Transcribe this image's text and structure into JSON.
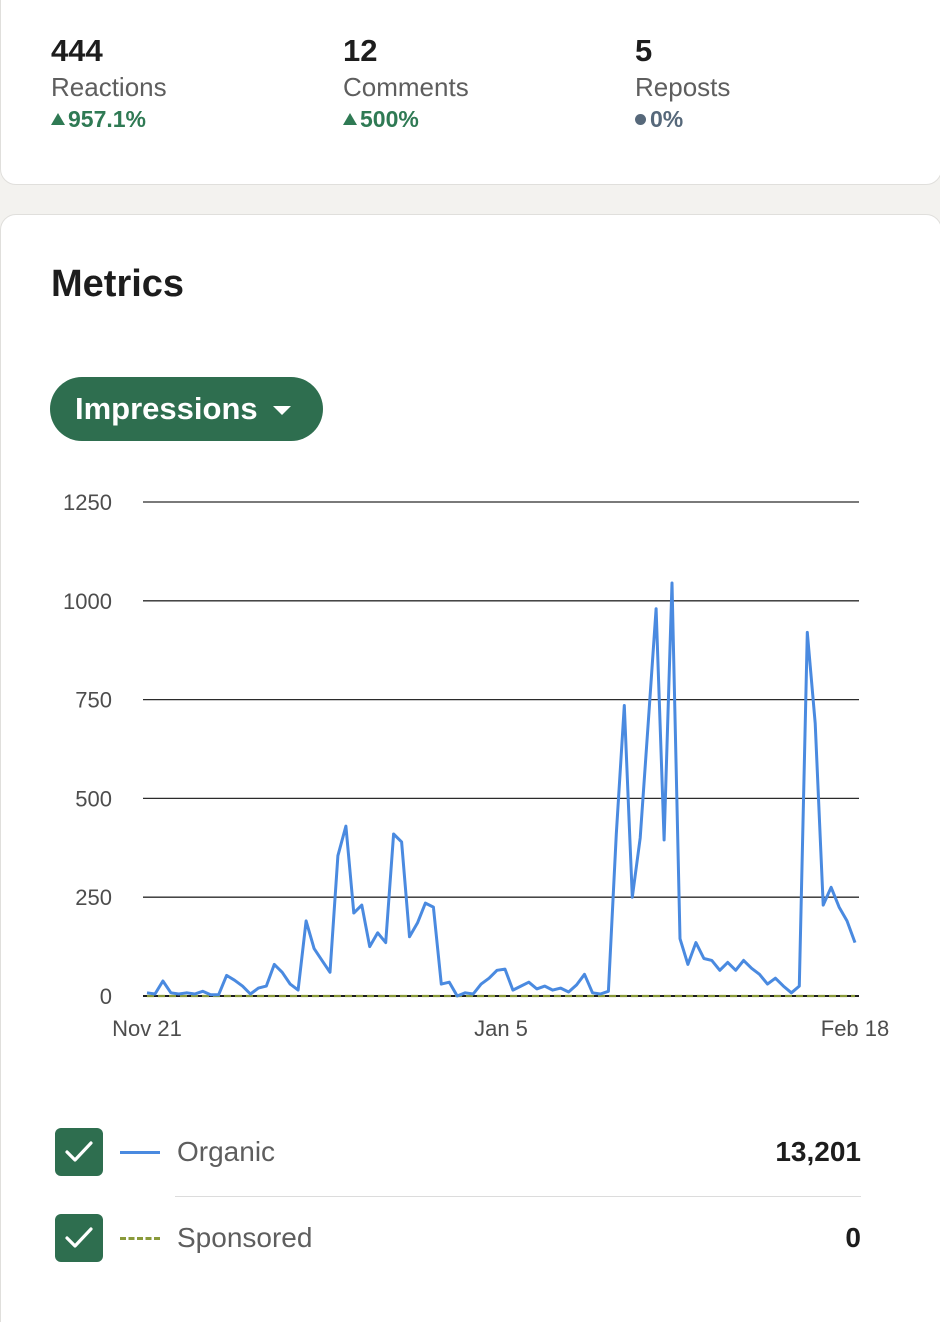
{
  "summary": {
    "reactions": {
      "value": "444",
      "label": "Reactions",
      "change": "957.1%",
      "trend": "up"
    },
    "comments": {
      "value": "12",
      "label": "Comments",
      "change": "500%",
      "trend": "up"
    },
    "reposts": {
      "value": "5",
      "label": "Reposts",
      "change": "0%",
      "trend": "flat"
    }
  },
  "metrics": {
    "title": "Metrics",
    "dropdown_label": "Impressions"
  },
  "chart_data": {
    "type": "line",
    "x_tick_labels": [
      "Nov 21",
      "Jan 5",
      "Feb 18"
    ],
    "y_ticks": [
      0,
      250,
      500,
      750,
      1000,
      1250
    ],
    "ylim": [
      0,
      1250
    ],
    "grid": true,
    "series": [
      {
        "name": "Organic",
        "color": "#4a8ae0",
        "style": "solid",
        "values": [
          8,
          5,
          38,
          8,
          5,
          8,
          5,
          12,
          3,
          3,
          52,
          40,
          25,
          5,
          20,
          25,
          80,
          60,
          30,
          15,
          190,
          120,
          90,
          60,
          355,
          430,
          210,
          230,
          125,
          160,
          135,
          410,
          390,
          150,
          185,
          235,
          225,
          30,
          35,
          0,
          8,
          5,
          30,
          45,
          65,
          68,
          15,
          25,
          35,
          18,
          25,
          15,
          20,
          10,
          28,
          55,
          8,
          5,
          12,
          410,
          735,
          250,
          400,
          690,
          980,
          395,
          1045,
          145,
          80,
          135,
          95,
          90,
          65,
          85,
          65,
          90,
          70,
          55,
          30,
          45,
          25,
          8,
          25,
          920,
          690,
          230,
          275,
          225,
          190,
          135
        ]
      },
      {
        "name": "Sponsored",
        "color": "#8a9a3a",
        "style": "dashed",
        "values": [
          0,
          0
        ]
      }
    ]
  },
  "legend": [
    {
      "name": "Organic",
      "total": "13,201",
      "checked": true
    },
    {
      "name": "Sponsored",
      "total": "0",
      "checked": true
    }
  ]
}
